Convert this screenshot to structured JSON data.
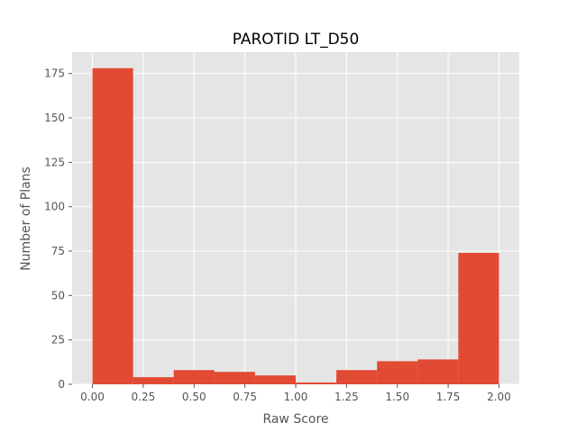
{
  "chart_data": {
    "type": "bar",
    "title": "PAROTID LT_D50",
    "xlabel": "Raw Score",
    "ylabel": "Number of Plans",
    "bin_edges": [
      0.0,
      0.2,
      0.4,
      0.6,
      0.8,
      1.0,
      1.2,
      1.4,
      1.6,
      1.8,
      2.0
    ],
    "values": [
      178,
      4,
      8,
      7,
      5,
      1,
      8,
      13,
      14,
      74
    ],
    "xlim": [
      -0.1,
      2.1
    ],
    "ylim": [
      0,
      187
    ],
    "x_ticks": [
      0.0,
      0.25,
      0.5,
      0.75,
      1.0,
      1.25,
      1.5,
      1.75,
      2.0
    ],
    "x_tick_labels": [
      "0.00",
      "0.25",
      "0.50",
      "0.75",
      "1.00",
      "1.25",
      "1.50",
      "1.75",
      "2.00"
    ],
    "y_ticks": [
      0,
      25,
      50,
      75,
      100,
      125,
      150,
      175
    ],
    "y_tick_labels": [
      "0",
      "25",
      "50",
      "75",
      "100",
      "125",
      "150",
      "175"
    ],
    "grid": true,
    "bar_color": "#E24A33",
    "plot_background": "#E5E5E5",
    "grid_color": "#FFFFFF"
  }
}
